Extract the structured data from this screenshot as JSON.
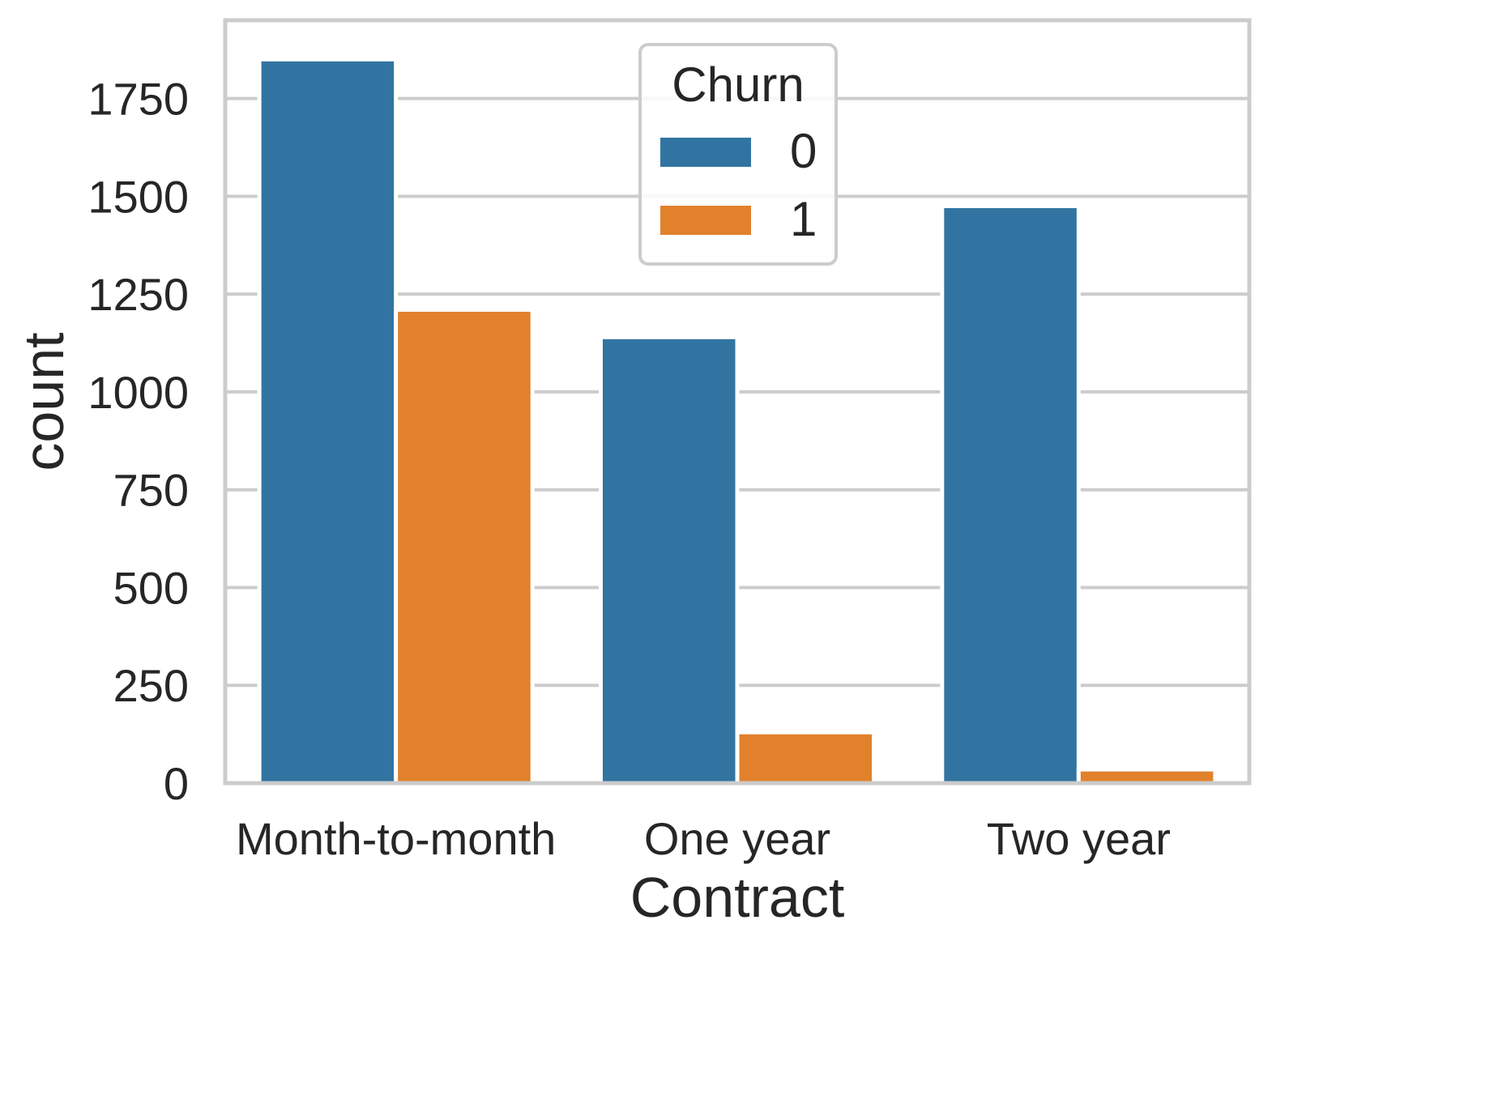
{
  "chart_data": {
    "type": "bar",
    "title": "",
    "xlabel": "Contract",
    "ylabel": "count",
    "categories": [
      "Month-to-month",
      "One year",
      "Two year"
    ],
    "series": [
      {
        "name": "0",
        "values": [
          1850,
          1140,
          1475
        ],
        "color": "#3274a1"
      },
      {
        "name": "1",
        "values": [
          1210,
          130,
          35
        ],
        "color": "#e1812c"
      }
    ],
    "ylim": [
      0,
      1950
    ],
    "yticks": [
      0,
      250,
      500,
      750,
      1000,
      1250,
      1500,
      1750
    ],
    "grid": "horizontal",
    "legend": {
      "title": "Churn",
      "placement": "upper-center"
    },
    "style_colors": {
      "grid": "#cccccc",
      "spine": "#cccccc",
      "text": "#262626"
    }
  }
}
